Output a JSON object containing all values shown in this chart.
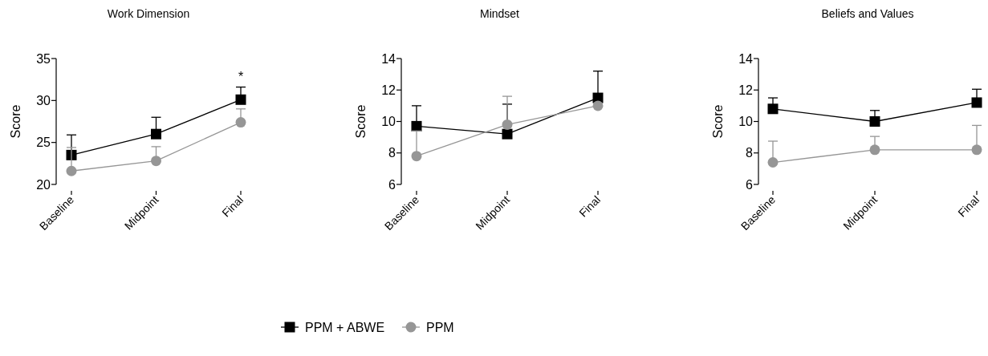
{
  "chart_data": [
    {
      "type": "line",
      "title": "Work Dimension",
      "ylabel": "Score",
      "categories": [
        "Baseline",
        "Midpoint",
        "Final"
      ],
      "ylim": [
        20,
        35
      ],
      "yticks": [
        20,
        25,
        30,
        35
      ],
      "legend": false,
      "annotations": [
        {
          "text": "*",
          "x": "Final",
          "y": 31.6
        }
      ],
      "series": [
        {
          "color": "#000000",
          "marker": "square",
          "values": [
            23.5,
            26.0,
            30.1
          ],
          "errors": [
            [
              23.5,
              25.9
            ],
            [
              26.0,
              28.0
            ],
            [
              30.1,
              31.6
            ]
          ]
        },
        {
          "color": "#969696",
          "marker": "circle",
          "values": [
            21.6,
            22.8,
            27.4
          ],
          "errors": [
            [
              21.6,
              24.4
            ],
            [
              22.8,
              24.5
            ],
            [
              27.4,
              29.0
            ]
          ]
        }
      ]
    },
    {
      "type": "line",
      "title": "Mindset",
      "ylabel": "Score",
      "categories": [
        "Baseline",
        "Midpoint",
        "Final"
      ],
      "ylim": [
        6,
        14
      ],
      "yticks": [
        6,
        8,
        10,
        12,
        14
      ],
      "legend": "bottom",
      "series": [
        {
          "name": "PPM + ABWE",
          "color": "#000000",
          "marker": "square",
          "values": [
            9.7,
            9.2,
            11.5
          ],
          "errors": [
            [
              9.7,
              11.0
            ],
            [
              9.2,
              11.1
            ],
            [
              11.5,
              13.2
            ]
          ]
        },
        {
          "name": "PPM",
          "color": "#969696",
          "marker": "circle",
          "values": [
            7.8,
            9.8,
            11.0
          ],
          "errors": [
            [
              7.8,
              9.4
            ],
            [
              9.8,
              11.6
            ],
            null
          ]
        }
      ]
    },
    {
      "type": "line",
      "title": "Beliefs and Values",
      "ylabel": "Score",
      "categories": [
        "Baseline",
        "Midpoint",
        "Final"
      ],
      "ylim": [
        6,
        14
      ],
      "yticks": [
        6,
        8,
        10,
        12,
        14
      ],
      "legend": false,
      "series": [
        {
          "color": "#000000",
          "marker": "square",
          "values": [
            10.8,
            10.0,
            11.2
          ],
          "errors": [
            [
              10.8,
              11.5
            ],
            [
              10.0,
              10.7
            ],
            [
              11.2,
              12.05
            ]
          ]
        },
        {
          "color": "#969696",
          "marker": "circle",
          "values": [
            7.4,
            8.2,
            8.2
          ],
          "errors": [
            [
              7.4,
              8.75
            ],
            [
              8.2,
              9.05
            ],
            [
              8.2,
              9.75
            ]
          ]
        }
      ]
    }
  ]
}
